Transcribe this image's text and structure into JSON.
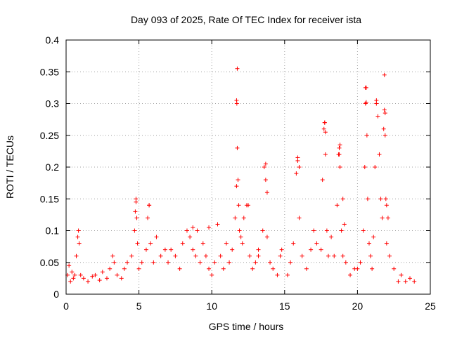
{
  "chart_data": {
    "type": "scatter",
    "title": "Day 093 of 2025, Rate Of TEC Index for receiver ista",
    "xlabel": "GPS time / hours",
    "ylabel": "ROTI / TECUs",
    "xlim": [
      0,
      25
    ],
    "ylim": [
      0,
      0.4
    ],
    "xticks": [
      0,
      5,
      10,
      15,
      20,
      25
    ],
    "xtick_labels": [
      "0",
      "5",
      "10",
      "15",
      "20",
      "25"
    ],
    "yticks": [
      0,
      0.05,
      0.1,
      0.15,
      0.2,
      0.25,
      0.3,
      0.35,
      0.4
    ],
    "ytick_labels": [
      "0",
      "0.05",
      "0.1",
      "0.15",
      "0.2",
      "0.25",
      "0.3",
      "0.35",
      "0.4"
    ],
    "grid": true,
    "marker": "+",
    "marker_color": "#ff0000",
    "series": [
      {
        "name": "ROTI",
        "x": [
          0.1,
          0.2,
          0.3,
          0.4,
          0.5,
          0.6,
          0.7,
          0.8,
          0.85,
          0.9,
          1.0,
          1.2,
          1.5,
          1.8,
          2.0,
          2.3,
          2.5,
          2.8,
          3.0,
          3.2,
          3.3,
          3.5,
          3.8,
          4.0,
          4.2,
          4.5,
          4.7,
          4.75,
          4.8,
          4.85,
          4.9,
          5.0,
          5.2,
          5.5,
          5.6,
          5.7,
          5.8,
          6.0,
          6.2,
          6.5,
          6.8,
          7.0,
          7.2,
          7.5,
          7.8,
          8.0,
          8.3,
          8.5,
          8.7,
          8.9,
          9.0,
          9.2,
          9.4,
          9.6,
          9.8,
          10.0,
          10.2,
          10.4,
          10.6,
          10.8,
          11.0,
          11.2,
          11.4,
          11.6,
          11.7,
          11.75,
          11.8,
          11.85,
          11.9,
          12.0,
          12.1,
          12.2,
          12.4,
          12.6,
          12.8,
          13.0,
          13.2,
          13.5,
          13.6,
          13.7,
          13.8,
          14.0,
          14.2,
          14.5,
          14.7,
          14.8,
          15.2,
          15.4,
          15.6,
          15.8,
          15.9,
          16.0,
          16.2,
          16.5,
          16.8,
          17.0,
          17.2,
          17.5,
          17.6,
          17.7,
          17.75,
          17.8,
          17.9,
          18.0,
          18.2,
          18.4,
          18.6,
          18.7,
          18.75,
          18.8,
          18.9,
          19.0,
          19.2,
          19.5,
          19.8,
          20.0,
          20.2,
          20.4,
          20.5,
          20.55,
          20.6,
          20.65,
          20.7,
          20.8,
          20.9,
          21.0,
          21.1,
          21.2,
          21.3,
          21.4,
          21.5,
          21.6,
          21.7,
          21.8,
          21.85,
          21.9,
          21.95,
          22.0,
          22.2,
          22.5,
          22.8,
          23.0,
          23.3,
          23.6,
          23.9,
          11.75,
          11.7,
          11.72,
          20.55,
          20.6,
          21.3,
          21.85,
          21.9,
          17.75,
          17.8,
          18.8,
          18.75,
          13.7,
          15.9,
          16.0,
          13.8,
          4.8,
          5.7,
          8.7,
          9.8,
          12.5,
          13.2,
          19.0,
          19.1,
          22.0,
          22.1
        ],
        "y": [
          0.03,
          0.045,
          0.02,
          0.035,
          0.025,
          0.03,
          0.06,
          0.09,
          0.1,
          0.08,
          0.03,
          0.025,
          0.02,
          0.028,
          0.03,
          0.022,
          0.035,
          0.025,
          0.04,
          0.06,
          0.05,
          0.03,
          0.025,
          0.04,
          0.05,
          0.06,
          0.1,
          0.13,
          0.15,
          0.12,
          0.08,
          0.04,
          0.05,
          0.07,
          0.12,
          0.14,
          0.08,
          0.05,
          0.09,
          0.06,
          0.07,
          0.05,
          0.07,
          0.06,
          0.04,
          0.08,
          0.1,
          0.09,
          0.07,
          0.06,
          0.1,
          0.05,
          0.08,
          0.06,
          0.04,
          0.03,
          0.05,
          0.11,
          0.06,
          0.04,
          0.08,
          0.05,
          0.07,
          0.12,
          0.17,
          0.23,
          0.18,
          0.14,
          0.1,
          0.09,
          0.08,
          0.12,
          0.14,
          0.06,
          0.04,
          0.05,
          0.07,
          0.1,
          0.2,
          0.18,
          0.09,
          0.05,
          0.04,
          0.03,
          0.06,
          0.07,
          0.03,
          0.05,
          0.08,
          0.19,
          0.21,
          0.12,
          0.06,
          0.04,
          0.07,
          0.1,
          0.08,
          0.07,
          0.18,
          0.26,
          0.27,
          0.22,
          0.1,
          0.06,
          0.09,
          0.06,
          0.14,
          0.22,
          0.23,
          0.2,
          0.1,
          0.06,
          0.05,
          0.03,
          0.04,
          0.04,
          0.05,
          0.1,
          0.2,
          0.3,
          0.325,
          0.25,
          0.15,
          0.08,
          0.06,
          0.04,
          0.09,
          0.2,
          0.3,
          0.28,
          0.22,
          0.15,
          0.12,
          0.26,
          0.29,
          0.25,
          0.15,
          0.08,
          0.06,
          0.04,
          0.02,
          0.03,
          0.02,
          0.025,
          0.02,
          0.355,
          0.305,
          0.3,
          0.325,
          0.302,
          0.305,
          0.345,
          0.285,
          0.27,
          0.255,
          0.235,
          0.22,
          0.205,
          0.215,
          0.2,
          0.16,
          0.145,
          0.14,
          0.105,
          0.105,
          0.14,
          0.06,
          0.15,
          0.11,
          0.14,
          0.12
        ]
      }
    ]
  }
}
